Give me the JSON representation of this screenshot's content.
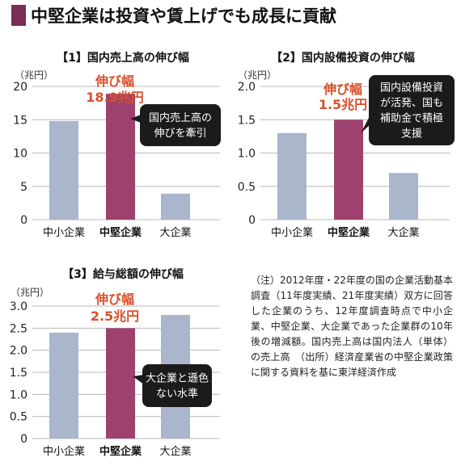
{
  "title": "中堅企業は投資や賃上げでも成長に貢献",
  "note": "（注）2012年度・22年度の国の企業活動基本調査（11年度実績、21年度実績）双方に回答した企業のうち、12年度調査時点で中小企業、中堅企業、大企業であった企業群の10年後の増減額。国内売上高は国内法人（単体）の売上高　（出所）経済産業省の中堅企業政策に関する資料を基に東洋経済作成",
  "colors": {
    "bar": "#a9b6cc",
    "highlight": "#9e416f",
    "accent": "#d9502b",
    "callout": "#1b1b1b",
    "grid": "#b8b8b8",
    "mark": "#7a2e55"
  },
  "chart_data": [
    {
      "type": "bar",
      "title": "【1】国内売上高の伸び幅",
      "ylabel": "（兆円）",
      "categories": [
        "中小企業",
        "中堅企業",
        "大企業"
      ],
      "values": [
        14.8,
        18.9,
        3.9
      ],
      "ylim": [
        0,
        20
      ],
      "yticks": [
        0,
        5,
        10,
        15,
        20
      ],
      "yticklabels": [
        "0",
        "5",
        "10",
        "15",
        "20"
      ],
      "highlight_index": 1,
      "annotation": {
        "line1": "伸び幅",
        "line2": "18.9兆円"
      },
      "callout": [
        "国内売上高の",
        "伸びを牽引"
      ]
    },
    {
      "type": "bar",
      "title": "【2】国内設備投資の伸び幅",
      "ylabel": "（兆円）",
      "categories": [
        "中小企業",
        "中堅企業",
        "大企業"
      ],
      "values": [
        1.3,
        1.5,
        0.7
      ],
      "ylim": [
        0,
        2.0
      ],
      "yticks": [
        0,
        0.5,
        1.0,
        1.5,
        2.0
      ],
      "yticklabels": [
        "0",
        "0.5",
        "1.0",
        "1.5",
        "2.0"
      ],
      "highlight_index": 1,
      "annotation": {
        "line1": "伸び幅",
        "line2": "1.5兆円"
      },
      "callout": [
        "国内設備投資",
        "が活発、国も",
        "補助金で積極",
        "支援"
      ]
    },
    {
      "type": "bar",
      "title": "【3】給与総額の伸び幅",
      "ylabel": "（兆円）",
      "categories": [
        "中小企業",
        "中堅企業",
        "大企業"
      ],
      "values": [
        2.4,
        2.5,
        2.8
      ],
      "ylim": [
        0,
        3.0
      ],
      "yticks": [
        0,
        0.5,
        1.0,
        1.5,
        2.0,
        2.5,
        3.0
      ],
      "yticklabels": [
        "0",
        "0.5",
        "1.0",
        "1.5",
        "2.0",
        "2.5",
        "3.0"
      ],
      "highlight_index": 1,
      "annotation": {
        "line1": "伸び幅",
        "line2": "2.5兆円"
      },
      "callout": [
        "大企業と遜色",
        "ない水準"
      ]
    }
  ]
}
